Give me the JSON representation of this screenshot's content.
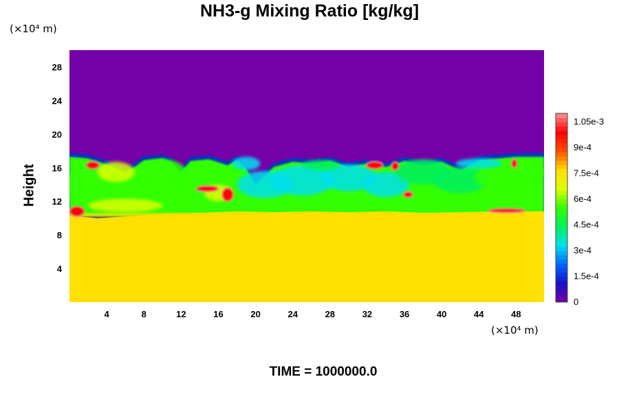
{
  "chart_data": {
    "type": "heatmap",
    "title": "NH3-g Mixing Ratio [kg/kg]",
    "ylabel": "Height",
    "xlabel": "",
    "x_unit_label": "(×10⁴ m)",
    "y_unit_label": "(×10⁴ m)",
    "footer": "TIME = 1000000.0",
    "xlim": [
      0,
      51
    ],
    "ylim": [
      0,
      30
    ],
    "x_ticks": [
      4,
      8,
      12,
      16,
      20,
      24,
      28,
      32,
      36,
      40,
      44,
      48
    ],
    "y_ticks": [
      4,
      8,
      12,
      16,
      20,
      24,
      28
    ],
    "colorbar": {
      "range": [
        0,
        0.0011
      ],
      "tick_values": [
        0,
        0.00015,
        0.0003,
        0.00045,
        0.0006,
        0.00075,
        0.0009,
        0.00105
      ],
      "tick_labels": [
        "0",
        "1.5e-4",
        "3e-4",
        "4.5e-4",
        "6e-4",
        "7.5e-4",
        "9e-4",
        "1.05e-3"
      ],
      "colormap": "rainbow",
      "colors": [
        "#7400a8",
        "#1a10c8",
        "#0064ff",
        "#00e0f0",
        "#00f060",
        "#30ff00",
        "#dcff00",
        "#ffe000",
        "#ff5000",
        "#ff0000",
        "#ff9090"
      ]
    },
    "regions": {
      "upper_layer": {
        "y_range": [
          18,
          30
        ],
        "value": 0
      },
      "lower_layer": {
        "y_range": [
          0,
          10.5
        ],
        "value": 0.00078
      },
      "mixed_layer": {
        "y_range": [
          10.5,
          18
        ],
        "value_range": [
          0,
          0.0011
        ]
      }
    }
  }
}
